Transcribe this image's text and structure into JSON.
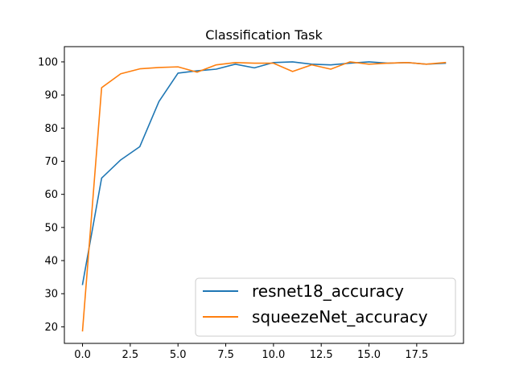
{
  "chart_data": {
    "type": "line",
    "title": "Classification Task",
    "xlabel": "",
    "ylabel": "",
    "xlim": [
      -0.95,
      19.95
    ],
    "ylim": [
      15.0,
      104.6
    ],
    "x_ticks": [
      0.0,
      2.5,
      5.0,
      7.5,
      10.0,
      12.5,
      15.0,
      17.5
    ],
    "x_tick_labels": [
      "0.0",
      "2.5",
      "5.0",
      "7.5",
      "10.0",
      "12.5",
      "15.0",
      "17.5"
    ],
    "y_ticks": [
      20,
      30,
      40,
      50,
      60,
      70,
      80,
      90,
      100
    ],
    "y_tick_labels": [
      "20",
      "30",
      "40",
      "50",
      "60",
      "70",
      "80",
      "90",
      "100"
    ],
    "grid": false,
    "legend_position": "lower-right",
    "x": [
      0,
      1,
      2,
      3,
      4,
      5,
      6,
      7,
      8,
      9,
      10,
      11,
      12,
      13,
      14,
      15,
      16,
      17,
      18,
      19
    ],
    "series": [
      {
        "name": "resnet18_accuracy",
        "color": "#1f77b4",
        "values": [
          32.8,
          64.9,
          70.4,
          74.4,
          88.0,
          96.6,
          97.3,
          97.8,
          99.3,
          98.2,
          99.8,
          100.0,
          99.3,
          99.1,
          99.6,
          100.0,
          99.6,
          99.8,
          99.3,
          99.6
        ]
      },
      {
        "name": "squeezeNet_accuracy",
        "color": "#ff7f0e",
        "values": [
          18.8,
          92.2,
          96.4,
          97.9,
          98.3,
          98.5,
          96.9,
          99.1,
          99.8,
          99.6,
          99.6,
          97.1,
          99.1,
          97.8,
          100.0,
          99.3,
          99.6,
          99.8,
          99.3,
          99.8
        ]
      }
    ]
  }
}
